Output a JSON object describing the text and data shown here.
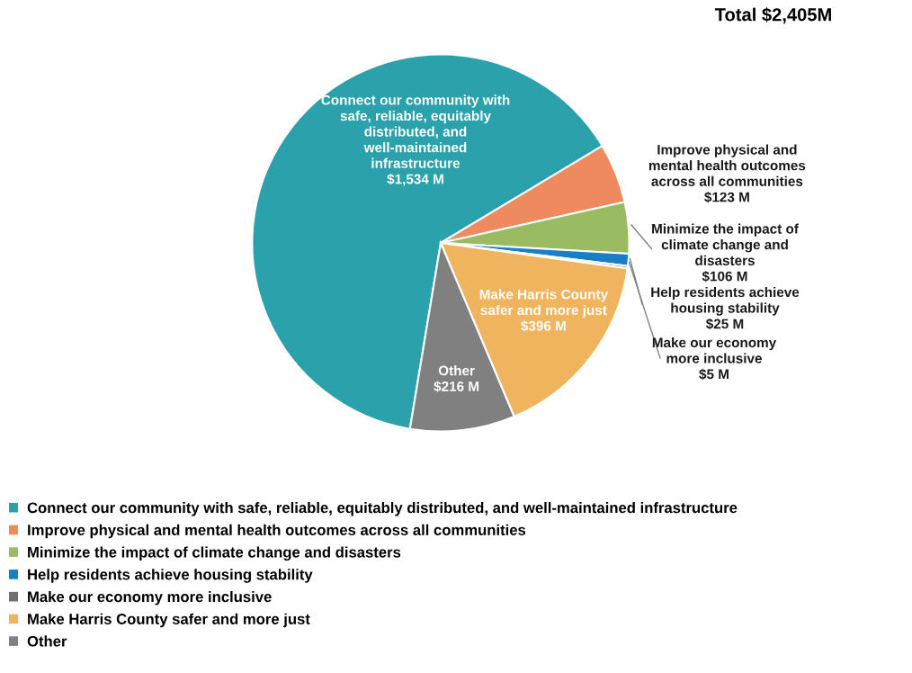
{
  "chart_data": {
    "type": "pie",
    "title": "Total $2,405M",
    "categories": [
      "Connect our community with safe, reliable, equitably distributed, and well-maintained infrastructure",
      "Improve physical and mental health outcomes across all communities",
      "Minimize the impact of climate change and disasters",
      "Help residents achieve housing stability",
      "Make our economy more inclusive",
      "Make Harris County safer and more just",
      "Other"
    ],
    "values": [
      1534,
      123,
      106,
      25,
      5,
      396,
      216
    ],
    "value_labels": [
      "$1,534 M",
      "$123 M",
      "$106 M",
      "$25 M",
      "$5 M",
      "$396 M",
      "$216 M"
    ],
    "colors": [
      "#2aa1ab",
      "#ef8a5e",
      "#9bbb63",
      "#1a7ec6",
      "#6f6f6f",
      "#f0b45e",
      "#808080"
    ],
    "legend": "bottom"
  }
}
